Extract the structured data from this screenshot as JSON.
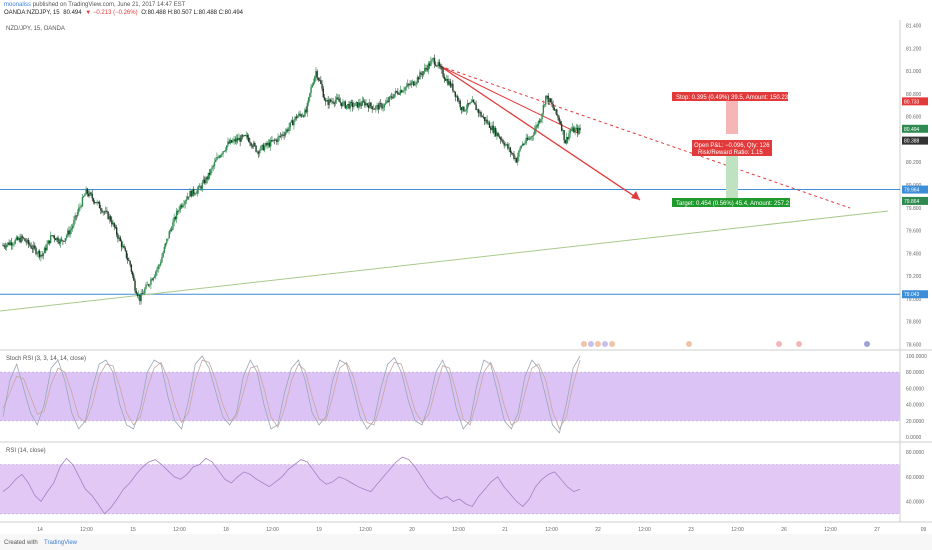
{
  "header": {
    "author": "moonaliss",
    "published": "published on TradingView.com, June 21, 2017 14:47 EST",
    "symbol": "OANDA:NZDJPY, 15",
    "last": "80.494",
    "change": "▼ −0.213 (−0.26%)",
    "ohlc": "O:80.488 H:80.507 L:80.488 C:80.494"
  },
  "footer": {
    "created": "Created with",
    "brand": "TradingView"
  },
  "colors": {
    "candle": "#2e8b4f",
    "hline": "#3d8ed8",
    "trend_red": "#e23a3a",
    "trend_green": "#a9c98a",
    "rsi_band": "#e2c9f5",
    "stoch_band": "#dbc4f5",
    "stoch_line": "#9aa7b6",
    "rsi_line": "#a77fc5"
  },
  "chart_data": {
    "type": "line",
    "title": "NZD/JPY, 15, OANDA",
    "price_ticks": [
      "81.400",
      "81.200",
      "81.000",
      "80.800",
      "80.600",
      "80.400",
      "80.200",
      "80.000",
      "79.800",
      "79.600",
      "79.400",
      "79.200",
      "79.000",
      "78.800",
      "78.600"
    ],
    "ylim": [
      78.55,
      81.45
    ],
    "x_ticks": [
      "14",
      "12:00",
      "15",
      "12:00",
      "18",
      "12:00",
      "19",
      "12:00",
      "20",
      "12:00",
      "21",
      "12:00",
      "22",
      "12:00",
      "23",
      "12:00",
      "26",
      "12:00",
      "27",
      "09"
    ],
    "price_series": [
      [
        0,
        79.47
      ],
      [
        2,
        79.5
      ],
      [
        4,
        79.53
      ],
      [
        6,
        79.45
      ],
      [
        8,
        79.38
      ],
      [
        10,
        79.56
      ],
      [
        12,
        79.5
      ],
      [
        14,
        79.62
      ],
      [
        16,
        79.84
      ],
      [
        17,
        79.94
      ],
      [
        18,
        79.9
      ],
      [
        20,
        79.8
      ],
      [
        22,
        79.7
      ],
      [
        24,
        79.5
      ],
      [
        26,
        79.3
      ],
      [
        27,
        79.1
      ],
      [
        28,
        79.0
      ],
      [
        29,
        79.08
      ],
      [
        30,
        79.15
      ],
      [
        32,
        79.3
      ],
      [
        34,
        79.58
      ],
      [
        36,
        79.8
      ],
      [
        38,
        79.92
      ],
      [
        40,
        79.96
      ],
      [
        42,
        80.08
      ],
      [
        44,
        80.25
      ],
      [
        46,
        80.36
      ],
      [
        48,
        80.4
      ],
      [
        50,
        80.42
      ],
      [
        52,
        80.3
      ],
      [
        54,
        80.35
      ],
      [
        56,
        80.4
      ],
      [
        58,
        80.48
      ],
      [
        60,
        80.6
      ],
      [
        62,
        80.64
      ],
      [
        63,
        80.85
      ],
      [
        64,
        81.0
      ],
      [
        65,
        80.88
      ],
      [
        66,
        80.72
      ],
      [
        68,
        80.75
      ],
      [
        70,
        80.7
      ],
      [
        72,
        80.7
      ],
      [
        74,
        80.72
      ],
      [
        76,
        80.68
      ],
      [
        78,
        80.7
      ],
      [
        80,
        80.8
      ],
      [
        82,
        80.85
      ],
      [
        84,
        80.9
      ],
      [
        86,
        81.0
      ],
      [
        88,
        81.1
      ],
      [
        89,
        81.05
      ],
      [
        90,
        80.97
      ],
      [
        92,
        80.85
      ],
      [
        94,
        80.66
      ],
      [
        96,
        80.72
      ],
      [
        98,
        80.6
      ],
      [
        100,
        80.5
      ],
      [
        102,
        80.4
      ],
      [
        104,
        80.28
      ],
      [
        105,
        80.22
      ],
      [
        106,
        80.35
      ],
      [
        108,
        80.42
      ],
      [
        110,
        80.6
      ],
      [
        111,
        80.78
      ],
      [
        112,
        80.72
      ],
      [
        114,
        80.55
      ],
      [
        115,
        80.38
      ],
      [
        116,
        80.48
      ],
      [
        118,
        80.48
      ]
    ],
    "h_lines": [
      79.96,
      79.04
    ],
    "h_line_labels": [
      "79.964",
      "79.043"
    ],
    "annotations": {
      "stop": "Stop: 0.395 (0.49%) 39.5, Amount: 150.23",
      "open": "Open P&L: −0.096, Qty: 126",
      "ratio": "Risk/Reward Ratio: 1.15",
      "target": "Target: 0.454 (0.56%) 45.4, Amount: 257.2"
    },
    "right_labels": [
      {
        "text": "80.733",
        "price": 80.735,
        "color": "#e23a3a"
      },
      {
        "text": "80.494",
        "price": 80.494,
        "color": "#2e8b4f"
      },
      {
        "text": "80.388",
        "price": 80.39,
        "color": "#333333"
      },
      {
        "text": "79.864",
        "price": 79.86,
        "color": "#2e8b4f"
      }
    ],
    "stoch": {
      "title": "Stoch RSI (3, 3, 14, 14, close)",
      "ticks": [
        "100.0000",
        "80.0000",
        "60.0000",
        "40.0000",
        "20.0000",
        "0.0000"
      ],
      "band": [
        20,
        80
      ],
      "k": [
        25,
        70,
        90,
        60,
        30,
        15,
        40,
        85,
        95,
        70,
        30,
        10,
        20,
        60,
        90,
        95,
        80,
        40,
        15,
        10,
        35,
        80,
        95,
        90,
        50,
        20,
        10,
        45,
        90,
        100,
        85,
        55,
        25,
        15,
        30,
        75,
        95,
        80,
        40,
        10,
        15,
        55,
        85,
        95,
        70,
        30,
        15,
        25,
        70,
        95,
        90,
        60,
        25,
        10,
        20,
        60,
        90,
        98,
        80,
        45,
        20,
        15,
        40,
        80,
        95,
        75,
        35,
        10,
        20,
        65,
        95,
        90,
        55,
        20,
        10,
        30,
        75,
        95,
        85,
        50,
        15,
        5,
        40,
        85,
        100
      ],
      "d": [
        35,
        55,
        75,
        72,
        50,
        28,
        32,
        65,
        85,
        80,
        55,
        25,
        18,
        40,
        75,
        90,
        88,
        62,
        30,
        15,
        25,
        60,
        85,
        92,
        72,
        40,
        18,
        30,
        70,
        95,
        92,
        70,
        40,
        20,
        25,
        55,
        85,
        88,
        60,
        25,
        12,
        35,
        70,
        90,
        82,
        50,
        22,
        20,
        50,
        85,
        92,
        75,
        42,
        18,
        15,
        40,
        75,
        92,
        90,
        62,
        32,
        18,
        28,
        60,
        88,
        85,
        55,
        22,
        15,
        45,
        80,
        92,
        72,
        38,
        15,
        20,
        55,
        85,
        90,
        70,
        32,
        10,
        25,
        65,
        95
      ]
    },
    "rsi": {
      "title": "RSI (14, close)",
      "ticks": [
        "80.0000",
        "60.0000",
        "40.0000"
      ],
      "band": [
        30,
        70
      ],
      "values": [
        48,
        52,
        58,
        62,
        55,
        45,
        40,
        48,
        55,
        68,
        75,
        70,
        60,
        50,
        45,
        38,
        30,
        35,
        42,
        50,
        55,
        62,
        68,
        72,
        74,
        70,
        65,
        60,
        58,
        62,
        68,
        70,
        75,
        72,
        65,
        58,
        55,
        60,
        64,
        62,
        58,
        55,
        52,
        56,
        60,
        66,
        70,
        74,
        72,
        65,
        58,
        54,
        56,
        60,
        58,
        55,
        52,
        50,
        48,
        54,
        60,
        66,
        72,
        76,
        74,
        68,
        60,
        52,
        46,
        42,
        44,
        40,
        42,
        38,
        36,
        44,
        50,
        56,
        60,
        52,
        46,
        40,
        36,
        42,
        52,
        58,
        62,
        64,
        58,
        52,
        48,
        50
      ]
    }
  }
}
